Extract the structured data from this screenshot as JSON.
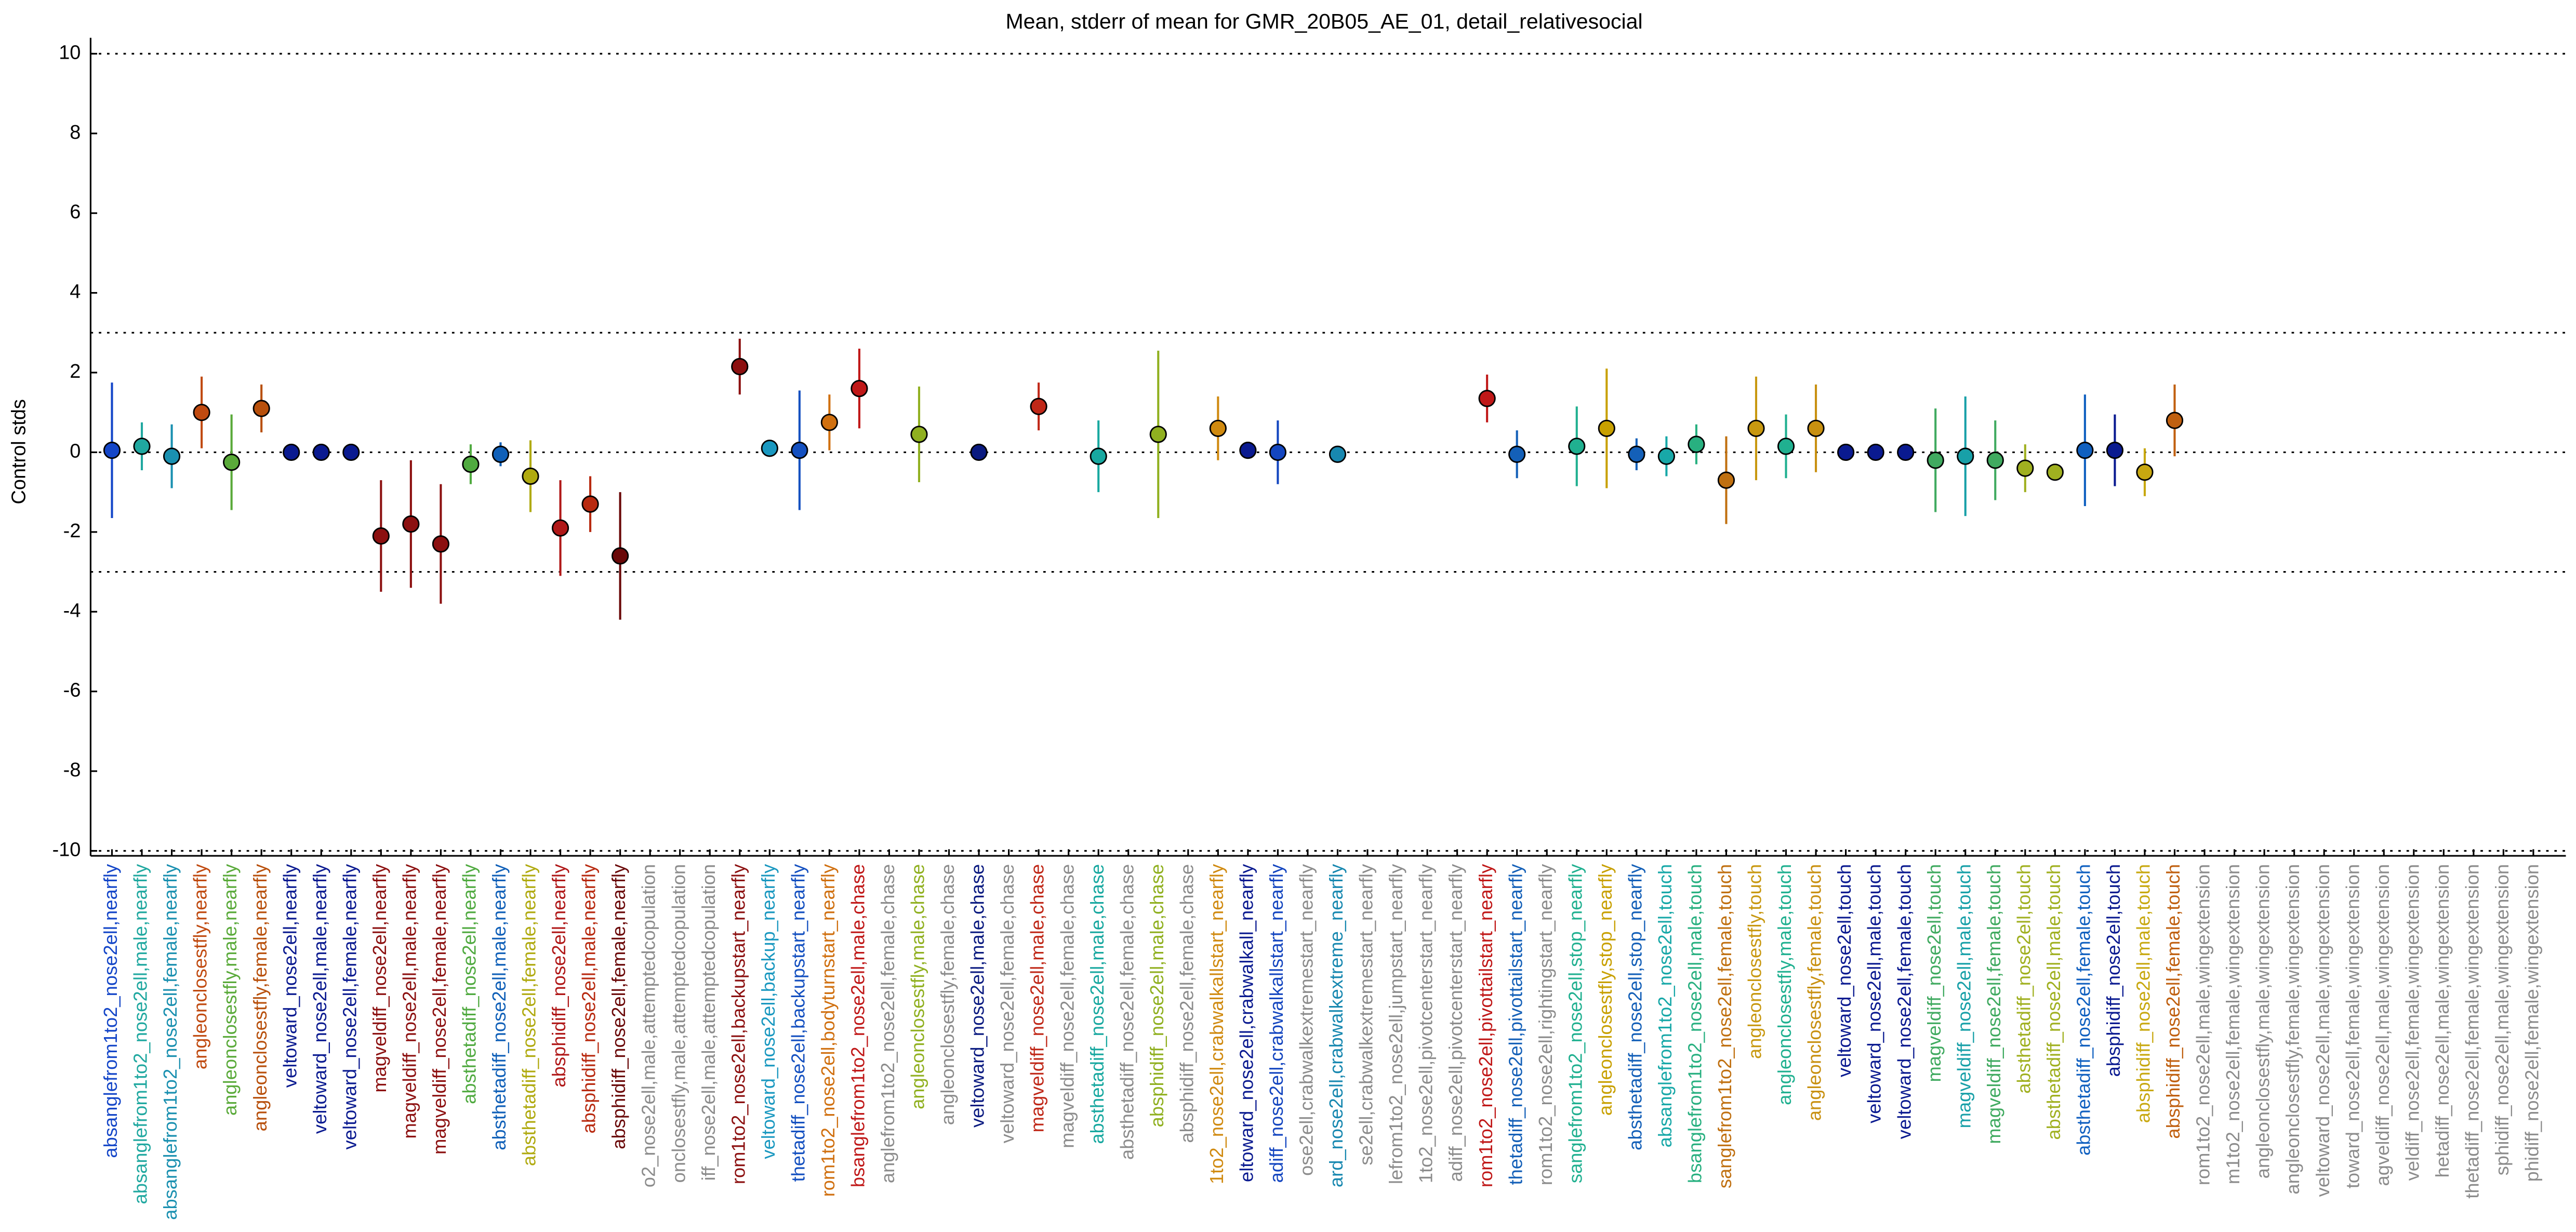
{
  "chart_data": {
    "type": "errorbar",
    "title": "Mean, stderr of mean for GMR_20B05_AE_01, detail_relativesocial",
    "ylabel": "Control stds",
    "categories": [
      "absanglefrom1to2_nose2ell,nearfly",
      "absanglefrom1to2_nose2ell,male,nearfly",
      "absanglefrom1to2_nose2ell,female,nearfly",
      "angleonclosestfly,nearfly",
      "angleonclosestfly,male,nearfly",
      "angleonclosestfly,female,nearfly",
      "veltoward_nose2ell,nearfly",
      "veltoward_nose2ell,male,nearfly",
      "veltoward_nose2ell,female,nearfly",
      "magveldiff_nose2ell,nearfly",
      "magveldiff_nose2ell,male,nearfly",
      "magveldiff_nose2ell,female,nearfly",
      "absthetadiff_nose2ell,nearfly",
      "absthetadiff_nose2ell,male,nearfly",
      "absthetadiff_nose2ell,female,nearfly",
      "absphidiff_nose2ell,nearfly",
      "absphidiff_nose2ell,male,nearfly",
      "absphidiff_nose2ell,female,nearfly",
      "o2_nose2ell,male,attemptedcopulation",
      "onclosestfly,male,attemptedcopulation",
      "iff_nose2ell,male,attemptedcopulation",
      "rom1to2_nose2ell,backupstart_nearfly",
      "veltoward_nose2ell,backup_nearfly",
      "thetadiff_nose2ell,backupstart_nearfly",
      "rom1to2_nose2ell,bodyturnstart_nearfly",
      "bsanglefrom1to2_nose2ell,male,chase",
      "anglefrom1to2_nose2ell,female,chase",
      "angleonclosestfly,male,chase",
      "angleonclosestfly,female,chase",
      "veltoward_nose2ell,male,chase",
      "veltoward_nose2ell,female,chase",
      "magveldiff_nose2ell,male,chase",
      "magveldiff_nose2ell,female,chase",
      "absthetadiff_nose2ell,male,chase",
      "absthetadiff_nose2ell,female,chase",
      "absphidiff_nose2ell,male,chase",
      "absphidiff_nose2ell,female,chase",
      "1to2_nose2ell,crabwalkallstart_nearfly",
      "eltoward_nose2ell,crabwalkall_nearfly",
      "adiff_nose2ell,crabwalkallstart_nearfly",
      "ose2ell,crabwalkextremestart_nearfly",
      "ard_nose2ell,crabwalkextreme_nearfly",
      "se2ell,crabwalkextremestart_nearfly",
      "lefrom1to2_nose2ell,jumpstart_nearfly",
      "1to2_nose2ell,pivotcenterstart_nearfly",
      "adiff_nose2ell,pivotcenterstart_nearfly",
      "rom1to2_nose2ell,pivottailstart_nearfly",
      "thetadiff_nose2ell,pivottailstart_nearfly",
      "rom1to2_nose2ell,rightingstart_nearfly",
      "sanglefrom1to2_nose2ell,stop_nearfly",
      "angleonclosestfly,stop_nearfly",
      "absthetadiff_nose2ell,stop_nearfly",
      "absanglefrom1to2_nose2ell,touch",
      "bsanglefrom1to2_nose2ell,male,touch",
      "sanglefrom1to2_nose2ell,female,touch",
      "angleonclosestfly,touch",
      "angleonclosestfly,male,touch",
      "angleonclosestfly,female,touch",
      "veltoward_nose2ell,touch",
      "veltoward_nose2ell,male,touch",
      "veltoward_nose2ell,female,touch",
      "magveldiff_nose2ell,touch",
      "magveldiff_nose2ell,male,touch",
      "magveldiff_nose2ell,female,touch",
      "absthetadiff_nose2ell,touch",
      "absthetadiff_nose2ell,male,touch",
      "absthetadiff_nose2ell,female,touch",
      "absphidiff_nose2ell,touch",
      "absphidiff_nose2ell,male,touch",
      "absphidiff_nose2ell,female,touch",
      "rom1to2_nose2ell,male,wingextension",
      "m1to2_nose2ell,female,wingextension",
      "angleonclosestfly,male,wingextension",
      "angleonclosestfly,female,wingextension",
      "veltoward_nose2ell,male,wingextension",
      "toward_nose2ell,female,wingextension",
      "agveldiff_nose2ell,male,wingextension",
      "veldiff_nose2ell,female,wingextension",
      "hetadiff_nose2ell,male,wingextension",
      "thetadiff_nose2ell,female,wingextension",
      "sphidiff_nose2ell,male,wingextension",
      "phidiff_nose2ell,female,wingextension"
    ],
    "values": [
      0.05,
      0.15,
      -0.1,
      1.0,
      -0.25,
      1.1,
      0,
      0,
      0,
      -2.1,
      -1.8,
      -2.3,
      -0.3,
      -0.05,
      -0.6,
      -1.9,
      -1.3,
      -2.6,
      null,
      null,
      null,
      2.15,
      0.1,
      0.05,
      0.75,
      1.6,
      null,
      0.45,
      null,
      0,
      null,
      1.15,
      null,
      -0.1,
      null,
      0.45,
      null,
      0.6,
      0.05,
      0,
      null,
      -0.05,
      null,
      null,
      null,
      null,
      1.35,
      -0.05,
      null,
      0.15,
      0.6,
      -0.05,
      -0.1,
      0.2,
      -0.7,
      0.6,
      0.15,
      0.6,
      0,
      0,
      0,
      -0.2,
      -0.1,
      -0.2,
      -0.4,
      -0.5,
      0.05,
      0.05,
      -0.5,
      0.8,
      null,
      null,
      null,
      null,
      null,
      null,
      null,
      null,
      null,
      null,
      null,
      null
    ],
    "errors": [
      1.7,
      0.6,
      0.8,
      0.9,
      1.2,
      0.6,
      0.1,
      0.1,
      0.1,
      1.4,
      1.6,
      1.5,
      0.5,
      0.3,
      0.9,
      1.2,
      0.7,
      1.6,
      null,
      null,
      null,
      0.7,
      0.1,
      1.5,
      0.7,
      1.0,
      null,
      1.2,
      null,
      0.1,
      null,
      0.6,
      null,
      0.9,
      null,
      2.1,
      null,
      0.8,
      0.1,
      0.8,
      null,
      0.1,
      null,
      null,
      null,
      null,
      0.6,
      0.6,
      null,
      1.0,
      1.5,
      0.4,
      0.5,
      0.5,
      1.1,
      1.3,
      0.8,
      1.1,
      0.1,
      0.1,
      0.1,
      1.3,
      1.5,
      1.0,
      0.6,
      0.2,
      1.4,
      0.9,
      0.6,
      0.9,
      null,
      null,
      null,
      null,
      null,
      null,
      null,
      null,
      null,
      null,
      null,
      null
    ],
    "colors": [
      "#1446c8",
      "#20a8a0",
      "#1a90b0",
      "#c04a10",
      "#5aaa3a",
      "#b8500c",
      "#0a1a90",
      "#0a1a90",
      "#0a1a90",
      "#8c1010",
      "#8c1010",
      "#8c1010",
      "#50aa40",
      "#1060b8",
      "#b0aa10",
      "#b01818",
      "#b82a10",
      "#6a0808",
      "#8c8c8c",
      "#8c8c8c",
      "#8c8c8c",
      "#8c1010",
      "#1a98c0",
      "#1450c0",
      "#d07010",
      "#c01818",
      "#8c8c8c",
      "#90b020",
      "#8c8c8c",
      "#0a1a80",
      "#8c8c8c",
      "#c02818",
      "#8c8c8c",
      "#18a8a0",
      "#8c8c8c",
      "#90b020",
      "#8c8c8c",
      "#d08a10",
      "#0a1a90",
      "#1446c0",
      "#8c8c8c",
      "#1888b0",
      "#8c8c8c",
      "#8c8c8c",
      "#8c8c8c",
      "#8c8c8c",
      "#c01818",
      "#1460b8",
      "#8c8c8c",
      "#20b090",
      "#c8a000",
      "#1460b8",
      "#18a8a8",
      "#28b080",
      "#c07010",
      "#c89810",
      "#20b090",
      "#c89010",
      "#0a1a90",
      "#0a1a90",
      "#0a1a90",
      "#40aa60",
      "#18a0a8",
      "#40aa60",
      "#a0b020",
      "#a0b020",
      "#1060c0",
      "#0a1a90",
      "#c8a810",
      "#c06010",
      "#8c8c8c",
      "#8c8c8c",
      "#8c8c8c",
      "#8c8c8c",
      "#8c8c8c",
      "#8c8c8c",
      "#8c8c8c",
      "#8c8c8c",
      "#8c8c8c",
      "#8c8c8c",
      "#8c8c8c",
      "#8c8c8c"
    ],
    "ylim": [
      -10.1,
      10.4
    ],
    "yticks": [
      -10,
      -8,
      -6,
      -4,
      -2,
      0,
      2,
      4,
      6,
      8,
      10
    ],
    "reference_lines": [
      10,
      3,
      0,
      -3,
      -10
    ]
  }
}
